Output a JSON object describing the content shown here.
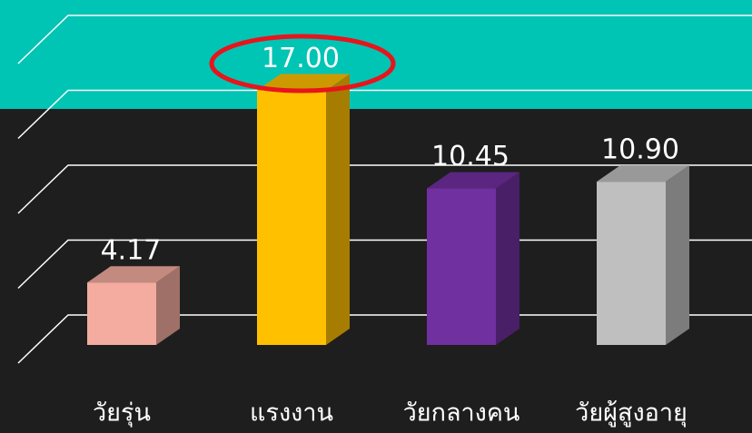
{
  "chart_data": {
    "type": "bar",
    "categories": [
      "วัยรุ่น",
      "แรงงาน",
      "วัยกลางคน",
      "วัยผู้สูงอายุ"
    ],
    "values": [
      4.17,
      17,
      10.45,
      10.9
    ],
    "value_labels": [
      "4.17",
      "17.00",
      "10.45",
      "10.90"
    ],
    "colors": [
      "#f4aca0",
      "#ffc000",
      "#7030a0",
      "#bfbfbf"
    ],
    "ylim": [
      0,
      20
    ],
    "yticks": [
      0,
      5,
      10,
      15,
      20
    ],
    "grid": true
  }
}
